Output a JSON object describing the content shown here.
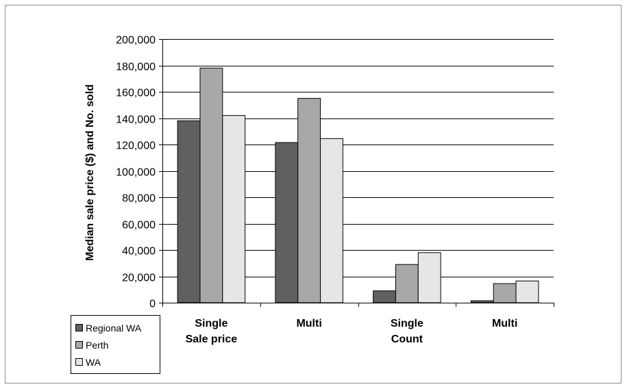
{
  "chart_data": {
    "type": "bar",
    "ylabel": "Median sale price ($) and No. sold",
    "xlabel": "",
    "ylim": [
      0,
      200000
    ],
    "yticks": [
      0,
      20000,
      40000,
      60000,
      80000,
      100000,
      120000,
      140000,
      160000,
      180000,
      200000
    ],
    "ytick_labels": [
      "0",
      "20,000",
      "40,000",
      "60,000",
      "80,000",
      "100,000",
      "120,000",
      "140,000",
      "160,000",
      "180,000",
      "200,000"
    ],
    "grid": true,
    "legend_position": "bottom-left",
    "categories": [
      "Single",
      "Multi",
      "Single",
      "Multi"
    ],
    "group_labels": [
      "Sale price",
      "",
      "Count",
      ""
    ],
    "series": [
      {
        "name": "Regional WA",
        "color": "#606060",
        "values": [
          138000,
          121500,
          9000,
          1500
        ]
      },
      {
        "name": "Perth",
        "color": "#a8a8a8",
        "values": [
          178000,
          155000,
          29000,
          14500
        ]
      },
      {
        "name": "WA",
        "color": "#e6e6e6",
        "values": [
          142000,
          124500,
          38000,
          16500
        ]
      }
    ]
  }
}
